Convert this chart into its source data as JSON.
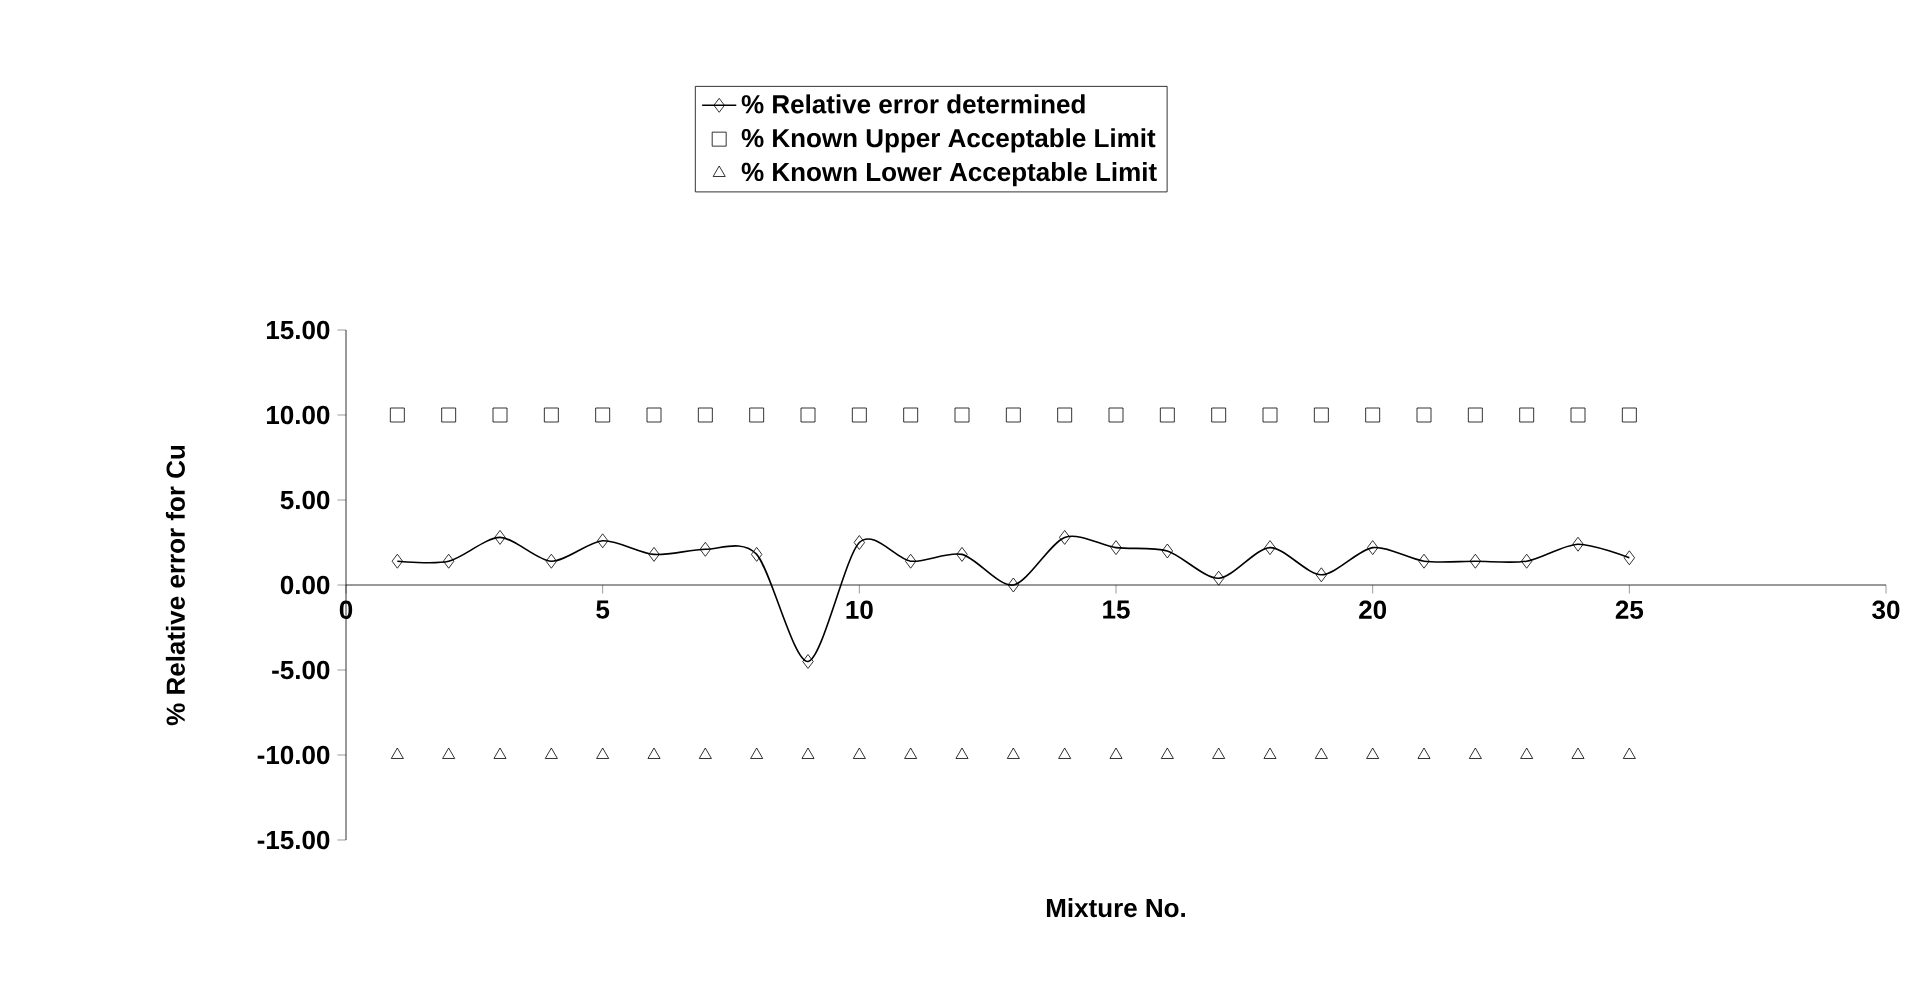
{
  "chart_data": {
    "type": "line",
    "xlabel": "Mixture No.",
    "ylabel": "% Relative error for Cu",
    "x": [
      1,
      2,
      3,
      4,
      5,
      6,
      7,
      8,
      9,
      10,
      11,
      12,
      13,
      14,
      15,
      16,
      17,
      18,
      19,
      20,
      21,
      22,
      23,
      24,
      25
    ],
    "series": [
      {
        "name": "% Relative error determined",
        "color": "#000000",
        "marker": "diamond",
        "values": [
          1.4,
          1.4,
          2.8,
          1.4,
          2.6,
          1.8,
          2.1,
          1.8,
          -4.5,
          2.5,
          1.4,
          1.8,
          0,
          2.8,
          2.2,
          2.0,
          0.4,
          2.2,
          0.6,
          2.2,
          1.4,
          1.4,
          1.4,
          2.4,
          1.6
        ]
      },
      {
        "name": "% Known Upper Acceptable Limit",
        "type": "scatter",
        "color": "#000000",
        "marker": "square",
        "values": [
          10,
          10,
          10,
          10,
          10,
          10,
          10,
          10,
          10,
          10,
          10,
          10,
          10,
          10,
          10,
          10,
          10,
          10,
          10,
          10,
          10,
          10,
          10,
          10,
          10
        ]
      },
      {
        "name": "% Known Lower Acceptable Limit",
        "type": "scatter",
        "color": "#000000",
        "marker": "triangle",
        "values": [
          -10,
          -10,
          -10,
          -10,
          -10,
          -10,
          -10,
          -10,
          -10,
          -10,
          -10,
          -10,
          -10,
          -10,
          -10,
          -10,
          -10,
          -10,
          -10,
          -10,
          -10,
          -10,
          -10,
          -10,
          -10
        ]
      }
    ],
    "xlim": [
      0,
      30
    ],
    "xticks": [
      0,
      5,
      10,
      15,
      20,
      25,
      30
    ],
    "ylim": [
      -15,
      15
    ],
    "yticks": [
      {
        "value": -15,
        "label": "-15.00"
      },
      {
        "value": -10,
        "label": "-10.00"
      },
      {
        "value": -5,
        "label": "-5.00"
      },
      {
        "value": 0,
        "label": "0.00"
      },
      {
        "value": 5,
        "label": "5.00"
      },
      {
        "value": 10,
        "label": "10.00"
      },
      {
        "value": 15,
        "label": "15.00"
      }
    ],
    "legend": "top",
    "grid": false
  }
}
